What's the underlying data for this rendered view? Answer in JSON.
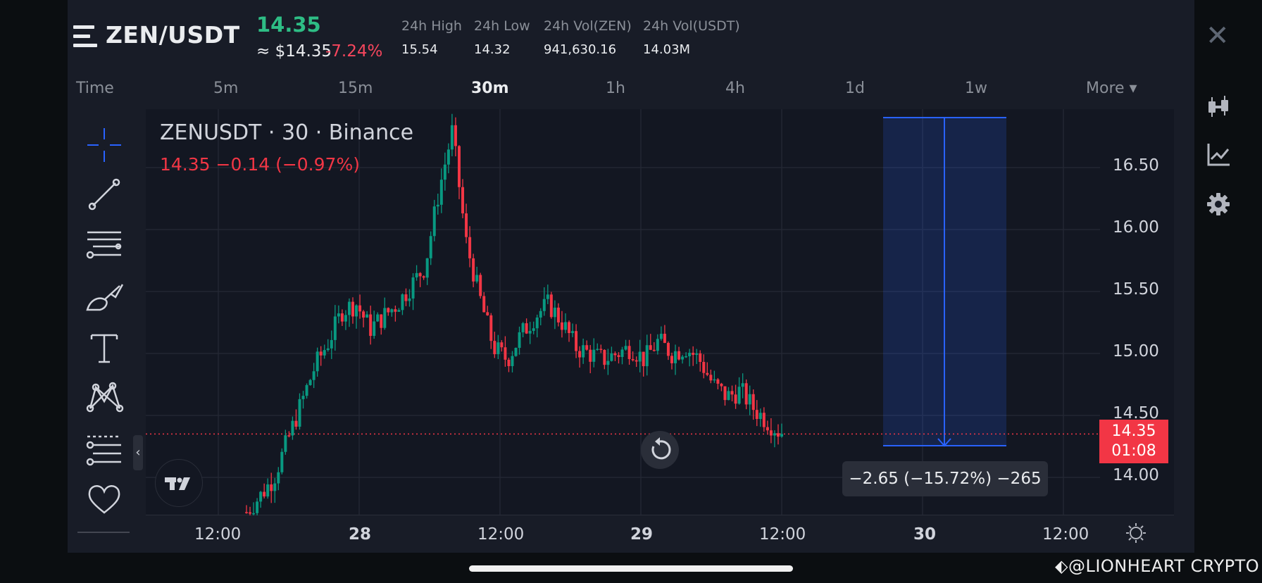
{
  "header": {
    "pair": "ZEN/USDT",
    "last_price": "14.35",
    "usd_price": "≈ $14.35",
    "change_pct": "-7.24%",
    "stats": [
      {
        "label": "24h High",
        "value": "15.54"
      },
      {
        "label": "24h Low",
        "value": "14.32"
      },
      {
        "label": "24h Vol(ZEN)",
        "value": "941,630.16"
      },
      {
        "label": "24h Vol(USDT)",
        "value": "14.03M"
      }
    ],
    "close_symbol": "✕"
  },
  "timeframes": {
    "time_label": "Time",
    "items": [
      "5m",
      "15m",
      "30m",
      "1h",
      "4h",
      "1d",
      "1w"
    ],
    "active": "30m",
    "more_label": "More ▾"
  },
  "left_toolbar": [
    "crosshair-icon",
    "trend-line-icon",
    "fib-lines-icon",
    "brush-icon",
    "text-icon",
    "pattern-icon",
    "measure-icon",
    "favorite-icon"
  ],
  "right_toolbar": [
    "candlestick-icon",
    "indicator-icon",
    "settings-icon"
  ],
  "chart": {
    "legend_title": "ZENUSDT · 30 · Binance",
    "legend_value": "14.35  −0.14 (−0.97%)",
    "current_price": "14.35",
    "countdown": "01:08",
    "measure_label": "−2.65 (−15.72%) −265",
    "tv_logo": "TV"
  },
  "chart_data": {
    "type": "candlestick",
    "symbol": "ZENUSDT",
    "interval": "30",
    "exchange": "Binance",
    "price_ticks": [
      "16.50",
      "16.00",
      "15.50",
      "15.00",
      "14.50",
      "14.00"
    ],
    "time_ticks": [
      {
        "label": "12:00",
        "bold": false
      },
      {
        "label": "28",
        "bold": true
      },
      {
        "label": "12:00",
        "bold": false
      },
      {
        "label": "29",
        "bold": true
      },
      {
        "label": "12:00",
        "bold": false
      },
      {
        "label": "30",
        "bold": true
      },
      {
        "label": "12:00",
        "bold": false
      }
    ],
    "ylim": [
      13.7,
      16.95
    ],
    "up_color": "#089981",
    "down_color": "#f23645",
    "close_path": [
      13.72,
      13.85,
      14.0,
      14.3,
      14.6,
      14.9,
      15.1,
      15.35,
      15.4,
      15.2,
      15.3,
      15.4,
      15.55,
      15.7,
      16.3,
      16.8,
      15.9,
      15.45,
      15.05,
      14.95,
      15.15,
      15.3,
      15.4,
      15.25,
      15.05,
      15.0,
      14.95,
      15.0,
      15.05,
      14.95,
      15.1,
      15.0,
      15.05,
      14.95,
      14.75,
      14.65,
      14.7,
      14.55,
      14.45,
      14.35
    ]
  },
  "footer": {
    "watermark": "⬖@LIONHEART CRYPTO"
  }
}
